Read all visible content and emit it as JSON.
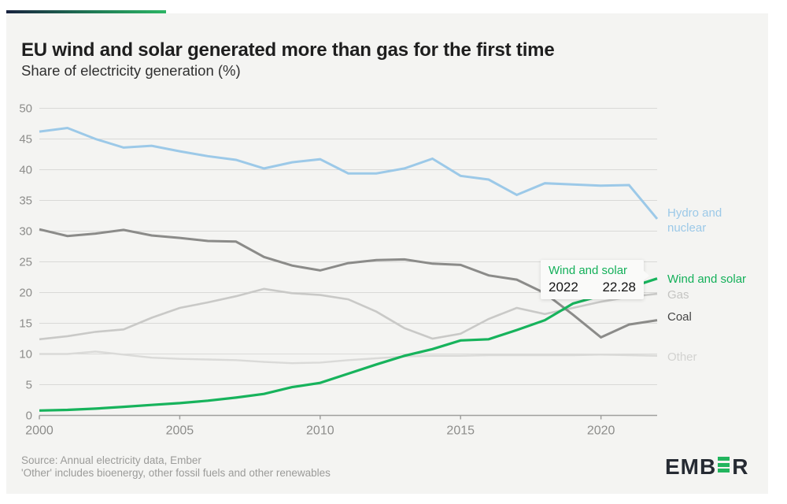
{
  "header": {
    "title": "EU wind and solar generated more than gas for the first time",
    "subtitle": "Share of electricity generation (%)"
  },
  "chart_data": {
    "type": "line",
    "x": [
      2000,
      2001,
      2002,
      2003,
      2004,
      2005,
      2006,
      2007,
      2008,
      2009,
      2010,
      2011,
      2012,
      2013,
      2014,
      2015,
      2016,
      2017,
      2018,
      2019,
      2020,
      2021,
      2022
    ],
    "x_ticks": [
      2000,
      2005,
      2010,
      2015,
      2020
    ],
    "y_ticks": [
      0,
      5,
      10,
      15,
      20,
      25,
      30,
      35,
      40,
      45,
      50
    ],
    "ylim": [
      0,
      50
    ],
    "xlim": [
      2000,
      2022
    ],
    "grid": "horizontal",
    "legend_position": "right-edge-labels",
    "series": [
      {
        "key": "other",
        "name": "Other",
        "color": "#dadad8",
        "label_color": "#d2d2d0",
        "values": [
          10.0,
          10.0,
          10.4,
          9.9,
          9.4,
          9.2,
          9.1,
          9.0,
          8.7,
          8.5,
          8.6,
          9.0,
          9.3,
          9.6,
          9.7,
          9.7,
          9.8,
          9.8,
          9.8,
          9.8,
          9.9,
          9.8,
          9.7
        ]
      },
      {
        "key": "gas",
        "name": "Gas",
        "color": "#c9c9c7",
        "label_color": "#c4c4c2",
        "values": [
          12.4,
          12.9,
          13.6,
          14.0,
          15.9,
          17.5,
          18.4,
          19.4,
          20.6,
          19.9,
          19.6,
          18.9,
          16.9,
          14.2,
          12.5,
          13.3,
          15.7,
          17.5,
          16.5,
          17.5,
          18.5,
          19.3,
          19.8
        ]
      },
      {
        "key": "coal",
        "name": "Coal",
        "color": "#8b8b89",
        "label_color": "#454545",
        "values": [
          30.3,
          29.2,
          29.6,
          30.2,
          29.3,
          28.9,
          28.4,
          28.3,
          25.8,
          24.4,
          23.6,
          24.8,
          25.3,
          25.4,
          24.7,
          24.5,
          22.8,
          22.1,
          19.9,
          16.4,
          12.7,
          14.8,
          15.5
        ]
      },
      {
        "key": "hydro_nuclear",
        "name": "Hydro and nuclear",
        "color": "#9cc9e8",
        "label_color": "#9cc9e8",
        "values": [
          46.2,
          46.8,
          45.0,
          43.6,
          43.9,
          43.0,
          42.2,
          41.6,
          40.2,
          41.2,
          41.7,
          39.4,
          39.4,
          40.2,
          41.8,
          39.0,
          38.4,
          35.9,
          37.8,
          37.6,
          37.4,
          37.5,
          32.0
        ]
      },
      {
        "key": "wind_solar",
        "name": "Wind and solar",
        "color": "#17b35c",
        "label_color": "#14b05a",
        "values": [
          0.8,
          0.9,
          1.1,
          1.4,
          1.7,
          2.0,
          2.4,
          2.9,
          3.5,
          4.6,
          5.3,
          6.8,
          8.3,
          9.7,
          10.8,
          12.2,
          12.4,
          13.9,
          15.5,
          18.2,
          19.5,
          20.8,
          22.28
        ]
      }
    ]
  },
  "tooltip": {
    "series": "Wind and solar",
    "year": "2022",
    "value": "22.28"
  },
  "footer": {
    "source_line1": "Source: Annual electricity data, Ember",
    "source_line2": "'Other' includes bioenergy, other fossil fuels and other renewables"
  },
  "logo": {
    "prefix": "EMB",
    "suffix": "R",
    "full_name": "EMBER",
    "bar_color": "#22b55e"
  },
  "colors": {
    "panel_bg": "#f4f4f2",
    "grid_line": "#d9d9d7",
    "axis_line": "#a0a09e",
    "tick_label": "#8d8d8b",
    "accent_green": "#17b35c",
    "accent_navy": "#18233f"
  }
}
